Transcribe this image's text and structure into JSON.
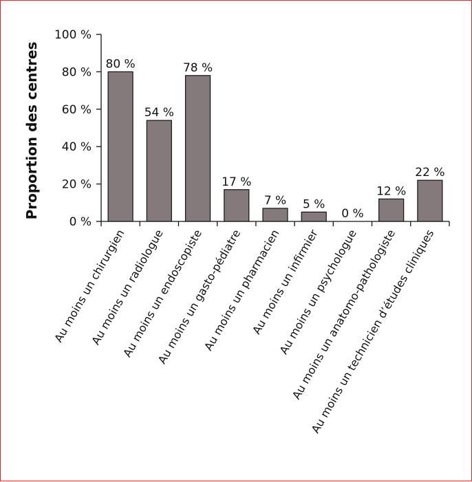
{
  "chart_data": {
    "type": "bar",
    "title": "",
    "xlabel": "",
    "ylabel": "Proportion des centres",
    "ylim": [
      0,
      100
    ],
    "yticks": [
      0,
      20,
      40,
      60,
      80,
      100
    ],
    "ytick_labels": [
      "0 %",
      "20 %",
      "40 %",
      "60 %",
      "80 %",
      "100 %"
    ],
    "categories": [
      "Au moins un chirurgien",
      "Au moins un radiologue",
      "Au moins un endoscopiste",
      "Au moins un gasto-pédiatre",
      "Au moins un pharmacien",
      "Au moins un infirmier",
      "Au moins un psychologue",
      "Au moins un anatomo-pathologiste",
      "Au moins un technicien d’études cliniques"
    ],
    "values": [
      80,
      54,
      78,
      17,
      7,
      5,
      0,
      12,
      22
    ],
    "value_labels": [
      "80 %",
      "54 %",
      "78 %",
      "17 %",
      "7 %",
      "5 %",
      "0 %",
      "12 %",
      "22 %"
    ],
    "bar_color": "#847a7b",
    "bar_edge_color": "#111111",
    "frame_color": "#d9262b",
    "grid": false,
    "legend": "none"
  }
}
